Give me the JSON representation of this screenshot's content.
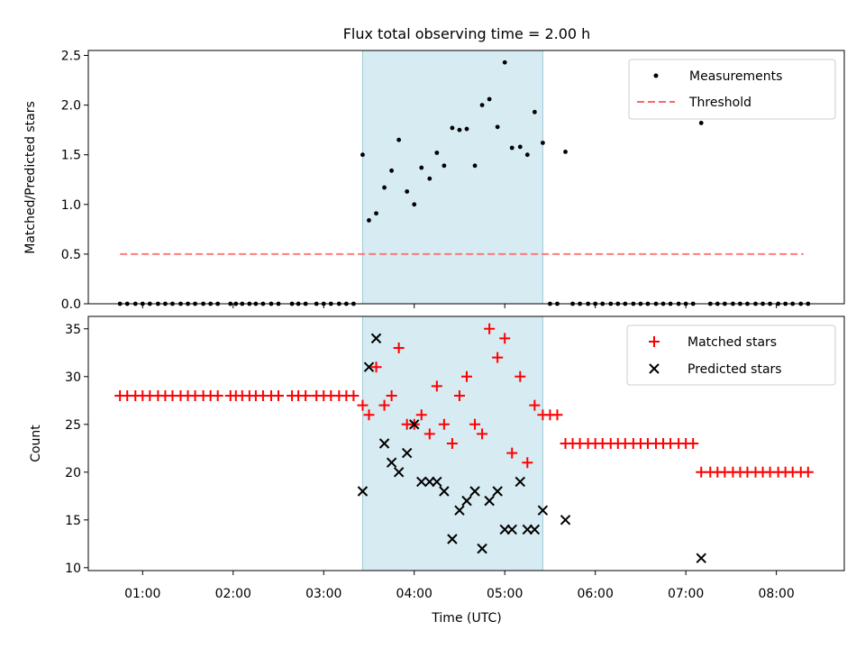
{
  "chart_data": [
    {
      "type": "scatter",
      "title": "Flux total observing time = 2.00 h",
      "xlabel": "",
      "ylabel": "Matched/Predicted stars",
      "xlim_hours": [
        0.4,
        8.75
      ],
      "ylim": [
        0,
        2.55
      ],
      "yticks": [
        0.0,
        0.5,
        1.0,
        1.5,
        2.0,
        2.5
      ],
      "ytick_labels": [
        "0.0",
        "0.5",
        "1.0",
        "1.5",
        "2.0",
        "2.5"
      ],
      "legend_position": "top-right",
      "highlight_span_hours": [
        3.43,
        5.42
      ],
      "highlight_color": "#add8e6",
      "series": [
        {
          "name": "Measurements",
          "marker": "dot",
          "color": "#000000",
          "x": [
            0.75,
            0.83,
            0.92,
            1.0,
            1.08,
            1.17,
            1.25,
            1.33,
            1.42,
            1.5,
            1.58,
            1.67,
            1.75,
            1.83,
            1.97,
            2.03,
            2.1,
            2.18,
            2.25,
            2.33,
            2.42,
            2.5,
            2.65,
            2.72,
            2.8,
            2.92,
            3.0,
            3.08,
            3.17,
            3.25,
            3.33,
            3.43,
            3.5,
            3.58,
            3.67,
            3.75,
            3.83,
            3.92,
            4.0,
            4.08,
            4.17,
            4.25,
            4.33,
            4.42,
            4.5,
            4.58,
            4.67,
            4.75,
            4.83,
            4.92,
            5.0,
            5.08,
            5.17,
            5.25,
            5.33,
            5.42,
            5.5,
            5.58,
            5.67,
            5.75,
            5.83,
            5.92,
            6.0,
            6.08,
            6.17,
            6.25,
            6.33,
            6.42,
            6.5,
            6.58,
            6.67,
            6.75,
            6.83,
            6.92,
            7.0,
            7.08,
            7.17,
            7.27,
            7.35,
            7.43,
            7.52,
            7.6,
            7.68,
            7.77,
            7.85,
            7.93,
            8.02,
            8.1,
            8.18,
            8.27,
            8.35
          ],
          "y": [
            0,
            0,
            0,
            0,
            0,
            0,
            0,
            0,
            0,
            0,
            0,
            0,
            0,
            0,
            0,
            0,
            0,
            0,
            0,
            0,
            0,
            0,
            0,
            0,
            0,
            0,
            0,
            0,
            0,
            0,
            0,
            1.5,
            0.84,
            0.91,
            1.17,
            1.34,
            1.65,
            1.13,
            1.0,
            1.37,
            1.26,
            1.52,
            1.39,
            1.77,
            1.75,
            1.76,
            1.39,
            2.0,
            2.06,
            1.78,
            2.43,
            1.57,
            1.58,
            1.5,
            1.93,
            1.62,
            0,
            0,
            1.53,
            0,
            0,
            0,
            0,
            0,
            0,
            0,
            0,
            0,
            0,
            0,
            0,
            0,
            0,
            0,
            0,
            0,
            1.82,
            0,
            0,
            0,
            0,
            0,
            0,
            0,
            0,
            0,
            0,
            0,
            0,
            0,
            0
          ]
        },
        {
          "name": "Threshold",
          "style": "dashed",
          "color": "#ff6666",
          "x": [
            0.75,
            8.3
          ],
          "y": [
            0.5,
            0.5
          ]
        }
      ]
    },
    {
      "type": "scatter",
      "title": "",
      "xlabel": "Time (UTC)",
      "ylabel": "Count",
      "xlim_hours": [
        0.4,
        8.75
      ],
      "ylim": [
        9.7,
        36.3
      ],
      "yticks": [
        10,
        15,
        20,
        25,
        30,
        35
      ],
      "ytick_labels": [
        "10",
        "15",
        "20",
        "25",
        "30",
        "35"
      ],
      "xticks_hours": [
        1,
        2,
        3,
        4,
        5,
        6,
        7,
        8
      ],
      "xtick_labels": [
        "01:00",
        "02:00",
        "03:00",
        "04:00",
        "05:00",
        "06:00",
        "07:00",
        "08:00"
      ],
      "legend_position": "top-right",
      "highlight_span_hours": [
        3.43,
        5.42
      ],
      "highlight_color": "#add8e6",
      "series": [
        {
          "name": "Matched stars",
          "marker": "plus",
          "color": "#ff0000",
          "x": [
            0.75,
            0.83,
            0.92,
            1.0,
            1.08,
            1.17,
            1.25,
            1.33,
            1.42,
            1.5,
            1.58,
            1.67,
            1.75,
            1.83,
            1.97,
            2.03,
            2.1,
            2.18,
            2.25,
            2.33,
            2.42,
            2.5,
            2.65,
            2.72,
            2.8,
            2.92,
            3.0,
            3.08,
            3.17,
            3.25,
            3.33,
            3.43,
            3.5,
            3.58,
            3.67,
            3.75,
            3.83,
            3.92,
            4.0,
            4.08,
            4.17,
            4.25,
            4.33,
            4.42,
            4.5,
            4.58,
            4.67,
            4.75,
            4.83,
            4.92,
            5.0,
            5.08,
            5.17,
            5.25,
            5.33,
            5.42,
            5.5,
            5.58,
            5.67,
            5.75,
            5.83,
            5.92,
            6.0,
            6.08,
            6.17,
            6.25,
            6.33,
            6.42,
            6.5,
            6.58,
            6.67,
            6.75,
            6.83,
            6.92,
            7.0,
            7.08,
            7.17,
            7.27,
            7.35,
            7.43,
            7.52,
            7.6,
            7.68,
            7.77,
            7.85,
            7.93,
            8.02,
            8.1,
            8.18,
            8.27,
            8.35
          ],
          "y": [
            28,
            28,
            28,
            28,
            28,
            28,
            28,
            28,
            28,
            28,
            28,
            28,
            28,
            28,
            28,
            28,
            28,
            28,
            28,
            28,
            28,
            28,
            28,
            28,
            28,
            28,
            28,
            28,
            28,
            28,
            28,
            27,
            26,
            31,
            27,
            28,
            33,
            25,
            25,
            26,
            24,
            29,
            25,
            23,
            28,
            30,
            25,
            24,
            35,
            32,
            34,
            22,
            30,
            21,
            27,
            26,
            26,
            26,
            23,
            23,
            23,
            23,
            23,
            23,
            23,
            23,
            23,
            23,
            23,
            23,
            23,
            23,
            23,
            23,
            23,
            23,
            20,
            20,
            20,
            20,
            20,
            20,
            20,
            20,
            20,
            20,
            20,
            20,
            20,
            20,
            20
          ]
        },
        {
          "name": "Predicted stars",
          "marker": "x",
          "color": "#000000",
          "x": [
            3.43,
            3.5,
            3.58,
            3.67,
            3.75,
            3.83,
            3.92,
            4.0,
            4.08,
            4.17,
            4.25,
            4.33,
            4.42,
            4.5,
            4.58,
            4.67,
            4.75,
            4.83,
            4.92,
            5.0,
            5.08,
            5.17,
            5.25,
            5.33,
            5.42,
            5.67,
            7.17
          ],
          "y": [
            18,
            31,
            34,
            23,
            21,
            20,
            22,
            25,
            19,
            19,
            19,
            18,
            13,
            16,
            17,
            18,
            12,
            17,
            18,
            14,
            14,
            19,
            14,
            14,
            16,
            15,
            11
          ]
        }
      ]
    }
  ]
}
